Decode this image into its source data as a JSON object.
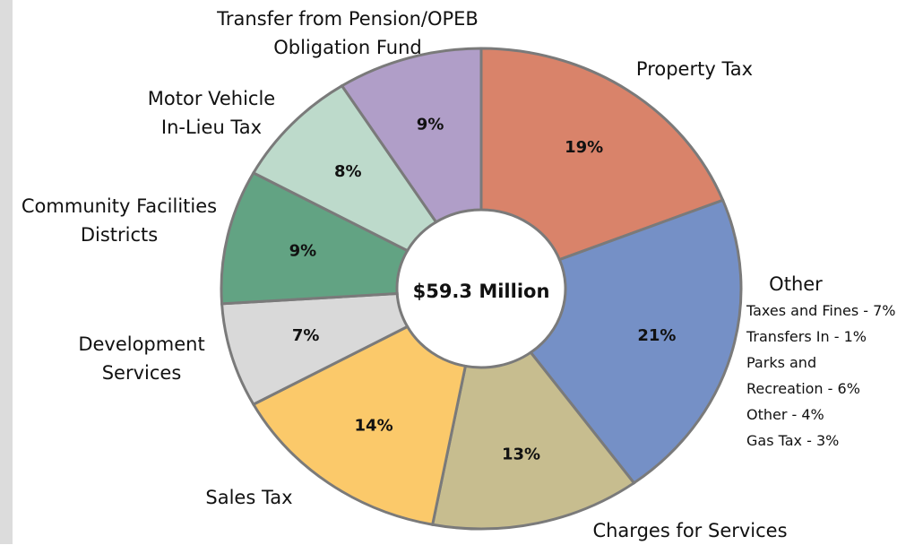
{
  "chart_data": {
    "type": "donut",
    "categories": [
      "Property Tax",
      "Other",
      "Charges for Services",
      "Sales Tax",
      "Development\nServices",
      "Community Facilities\nDistricts",
      "Motor Vehicle\nIn-Lieu Tax",
      "Transfer from Pension/OPEB\nObligation Fund"
    ],
    "values": [
      19,
      21,
      13,
      14,
      7,
      9,
      8,
      9
    ],
    "value_labels": [
      "19%",
      "21%",
      "13%",
      "14%",
      "7%",
      "9%",
      "8%",
      "9%"
    ],
    "colors": [
      "#d9836a",
      "#7590c6",
      "#c7bd8f",
      "#fbc96a",
      "#d9d9d9",
      "#62a383",
      "#bddacb",
      "#b09ec8"
    ],
    "center_label": "$59.3 Million",
    "other_breakdown": [
      "Taxes and Fines - 7%",
      "Transfers In - 1%",
      "Parks and\nRecreation - 6%",
      "Other - 4%",
      "Gas Tax - 3%"
    ]
  }
}
